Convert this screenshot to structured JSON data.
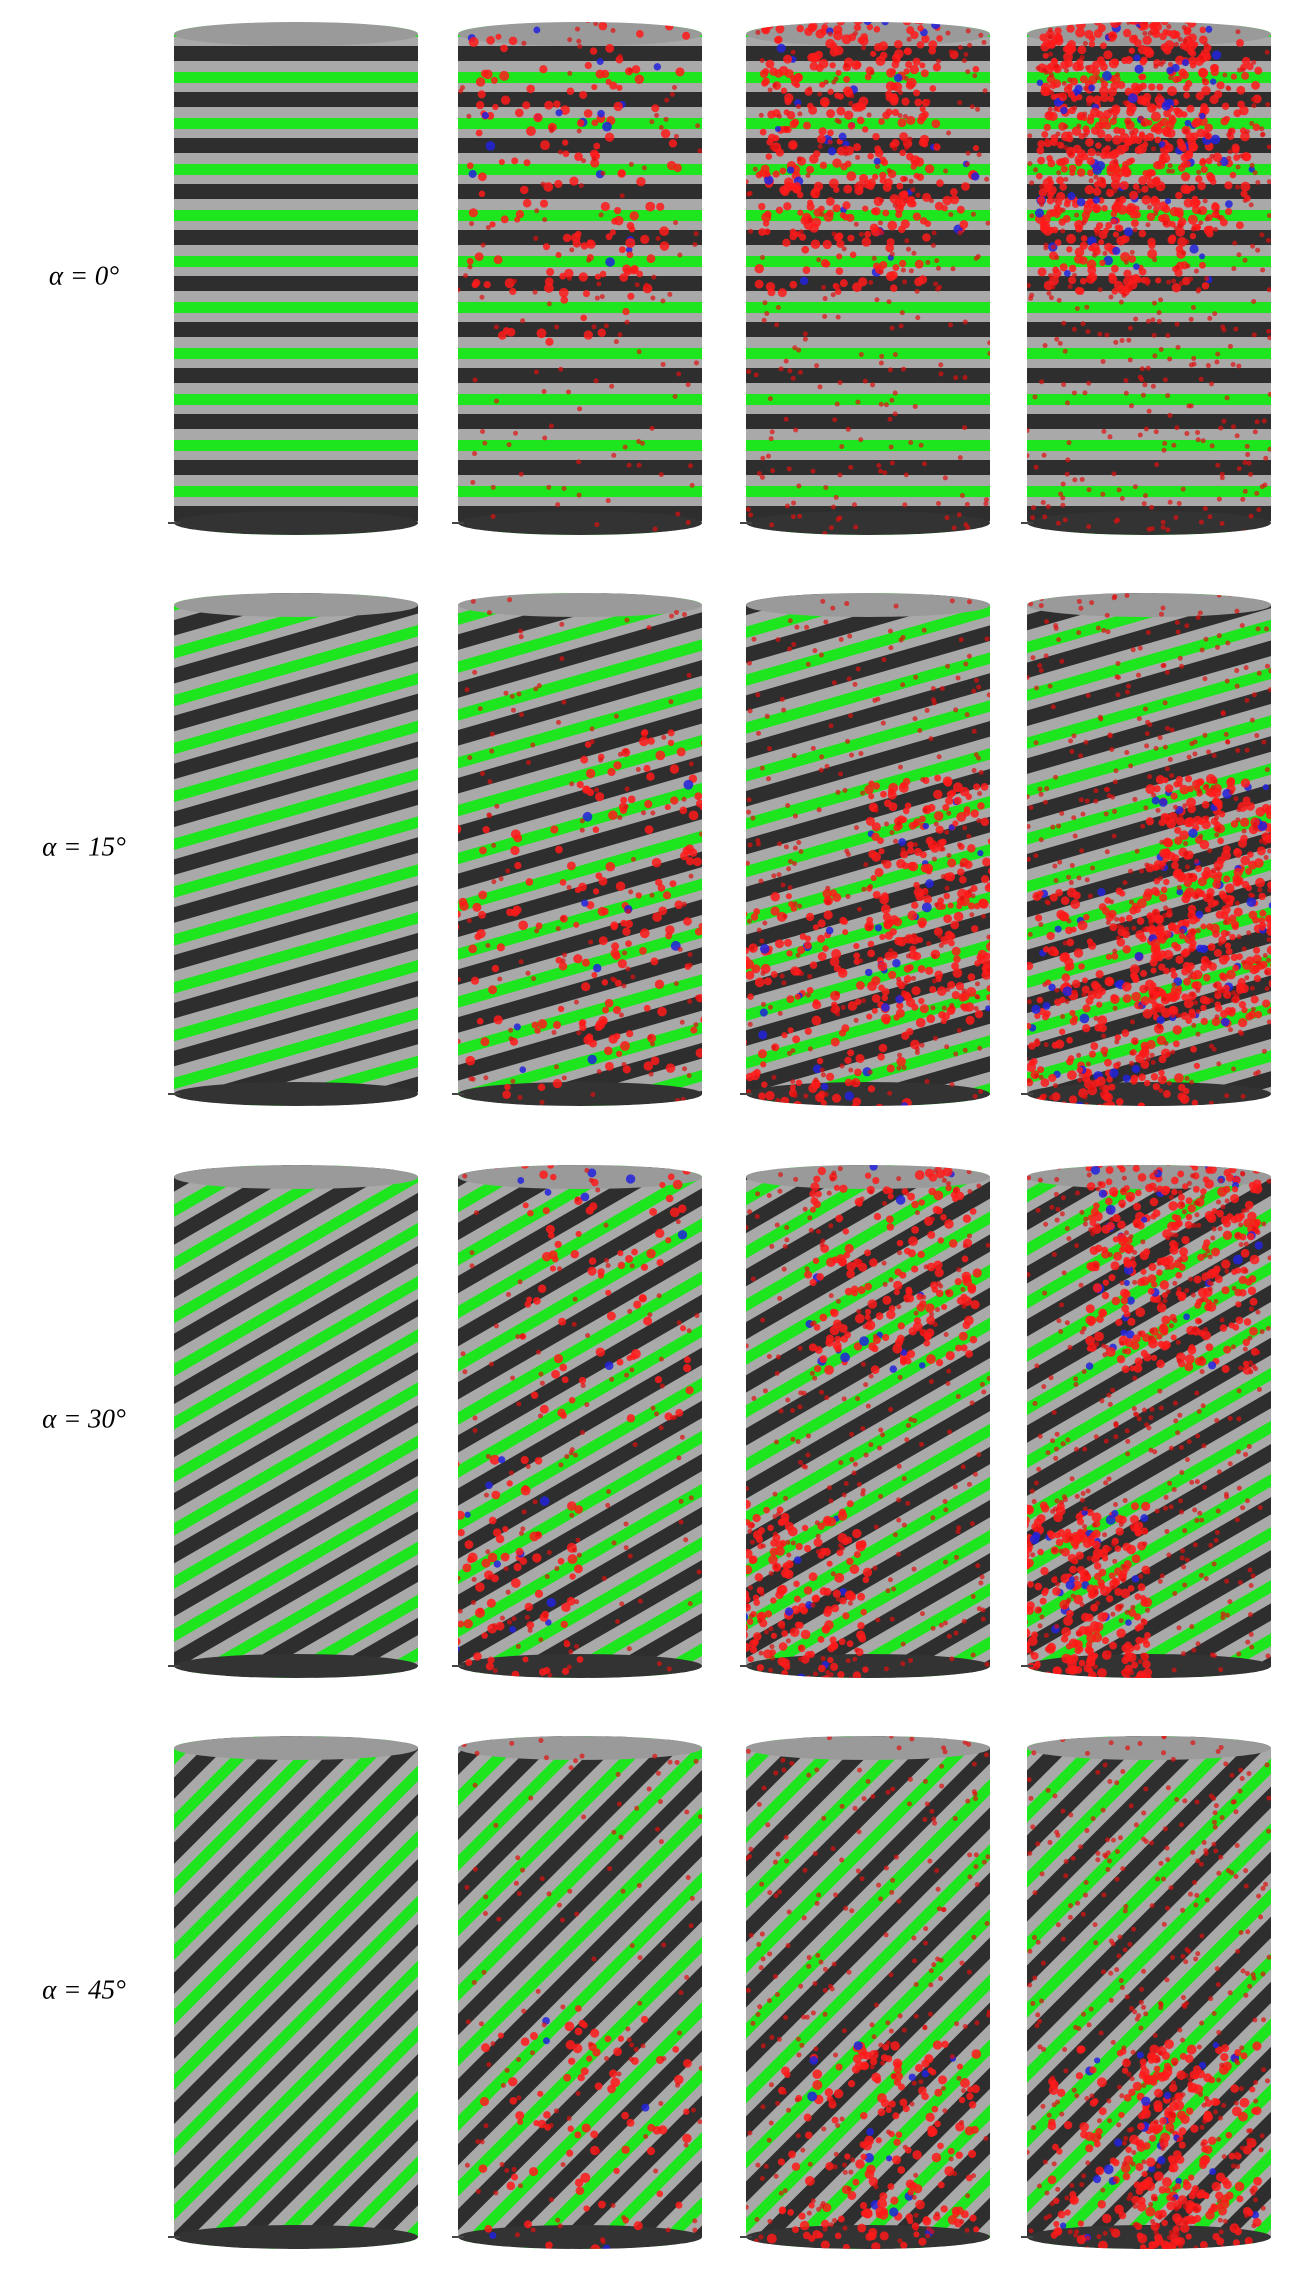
{
  "rows": [
    {
      "label": "α = 0°"
    },
    {
      "label": "α = 15°"
    },
    {
      "label": "α = 30°"
    },
    {
      "label": "α = 45°"
    }
  ]
}
